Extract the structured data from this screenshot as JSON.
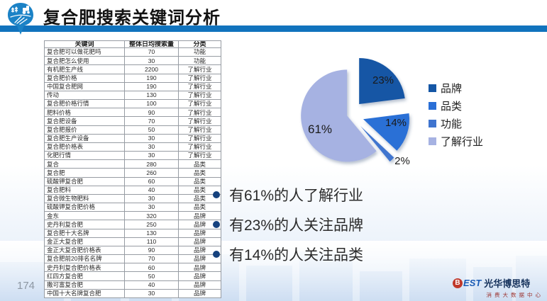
{
  "header": {
    "title": "复合肥搜索关键词分析"
  },
  "theme": {
    "header_bar": "#1173bd",
    "pin_logo": "#1b82c6",
    "bullet_dot": "#16427e"
  },
  "table": {
    "columns": [
      "关键词",
      "整体日均搜索量",
      "分类"
    ],
    "rows": [
      [
        "复合肥可以做花肥吗",
        "70",
        "功能"
      ],
      [
        "复合肥怎么使用",
        "30",
        "功能"
      ],
      [
        "有机肥生产线",
        "2200",
        "了解行业"
      ],
      [
        "复合肥价格",
        "190",
        "了解行业"
      ],
      [
        "中国复合肥网",
        "190",
        "了解行业"
      ],
      [
        "传动",
        "130",
        "了解行业"
      ],
      [
        "复合肥价格行情",
        "100",
        "了解行业"
      ],
      [
        "肥料价格",
        "90",
        "了解行业"
      ],
      [
        "复合肥设备",
        "70",
        "了解行业"
      ],
      [
        "复合肥报价",
        "50",
        "了解行业"
      ],
      [
        "复合肥生产设备",
        "30",
        "了解行业"
      ],
      [
        "复合肥价格表",
        "30",
        "了解行业"
      ],
      [
        "化肥行情",
        "30",
        "了解行业"
      ],
      [
        "复合",
        "280",
        "品类"
      ],
      [
        "复合肥",
        "260",
        "品类"
      ],
      [
        "硫酸钾复合肥",
        "60",
        "品类"
      ],
      [
        "复合肥料",
        "40",
        "品类"
      ],
      [
        "复合微生物肥料",
        "30",
        "品类"
      ],
      [
        "硫酸钾复合肥价格",
        "30",
        "品类"
      ],
      [
        "金东",
        "320",
        "品牌"
      ],
      [
        "史丹利复合肥",
        "250",
        "品牌"
      ],
      [
        "复合肥十大名牌",
        "130",
        "品牌"
      ],
      [
        "金正大复合肥",
        "110",
        "品牌"
      ],
      [
        "金正大复合肥价格表",
        "90",
        "品牌"
      ],
      [
        "复合肥前20排名名牌",
        "70",
        "品牌"
      ],
      [
        "史丹利复合肥价格表",
        "60",
        "品牌"
      ],
      [
        "红四方复合肥",
        "50",
        "品牌"
      ],
      [
        "撒可富复合肥",
        "40",
        "品牌"
      ],
      [
        "中国十大名牌复合肥",
        "30",
        "品牌"
      ]
    ]
  },
  "chart_data": {
    "type": "pie",
    "title": "",
    "labels": [
      "品牌",
      "品类",
      "功能",
      "了解行业"
    ],
    "values": [
      23,
      14,
      2,
      61
    ],
    "data_labels": [
      "23%",
      "14%",
      "2%",
      "61%"
    ],
    "colors": [
      "#1456a5",
      "#2a6fd6",
      "#3f74cf",
      "#a6b2e2"
    ],
    "legend_position": "right",
    "style": "exploded"
  },
  "bullets": [
    "有61%的人了解行业",
    "有23%的人关注品牌",
    "有14%的人关注品类"
  ],
  "footer": {
    "page_number": "174",
    "logo_b": "B",
    "logo_est": "EST",
    "logo_name": "光华博思特",
    "logo_subtitle": "消费大数据中心"
  }
}
